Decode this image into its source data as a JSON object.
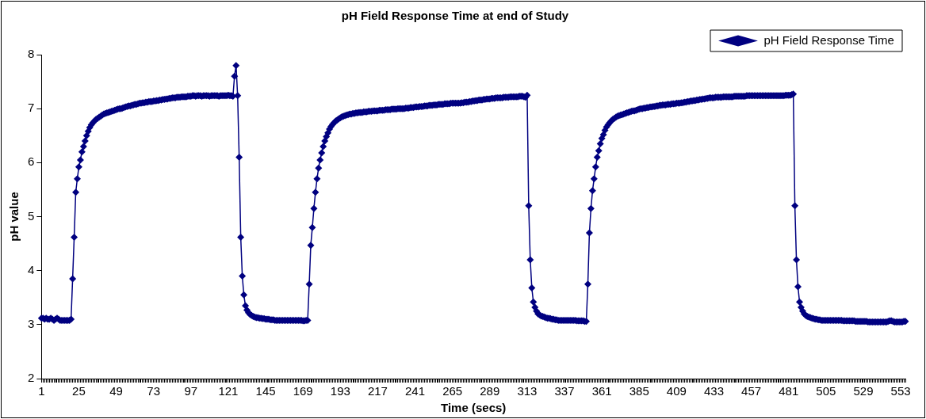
{
  "chart_data": {
    "type": "line",
    "title": "pH Field Response Time at end of Study",
    "xlabel": "Time (secs)",
    "ylabel": "pH value",
    "categories": [
      "1",
      null,
      null,
      null,
      null,
      null,
      null,
      null,
      null,
      null,
      null,
      null,
      null,
      null,
      null,
      null,
      null,
      null,
      null,
      null,
      null,
      null,
      null,
      null,
      "25",
      null,
      null,
      null,
      null,
      null,
      null,
      null,
      null,
      null,
      null,
      null,
      null,
      null,
      null,
      null,
      null,
      null,
      null,
      null,
      null,
      null,
      null,
      null,
      "49",
      null,
      null,
      null,
      null,
      null,
      null,
      null,
      null,
      null,
      null,
      null,
      null,
      null,
      null,
      null,
      null,
      null,
      null,
      null,
      null,
      null,
      null,
      null,
      "73",
      null,
      null,
      null,
      null,
      null,
      null,
      null,
      null,
      null,
      null,
      null,
      null,
      null,
      null,
      null,
      null,
      null,
      null,
      null,
      null,
      null,
      null,
      null,
      "97",
      null,
      null,
      null,
      null,
      null,
      null,
      null,
      null,
      null,
      null,
      null,
      null,
      null,
      null,
      null,
      null,
      null,
      null,
      null,
      null,
      null,
      null,
      null,
      "121",
      null,
      null,
      null,
      null,
      null,
      null,
      null,
      null,
      null,
      null,
      null,
      null,
      null,
      null,
      null,
      null,
      null,
      null,
      null,
      null,
      null,
      null,
      null,
      "145",
      null,
      null,
      null,
      null,
      null,
      null,
      null,
      null,
      null,
      null,
      null,
      null,
      null,
      null,
      null,
      null,
      null,
      null,
      null,
      null,
      null,
      null,
      null,
      "169",
      null,
      null,
      null,
      null,
      null,
      null,
      null,
      null,
      null,
      null,
      null,
      null,
      null,
      null,
      null,
      null,
      null,
      null,
      null,
      null,
      null,
      null,
      null,
      "193",
      null,
      null,
      null,
      null,
      null,
      null,
      null,
      null,
      null,
      null,
      null,
      null,
      null,
      null,
      null,
      null,
      null,
      null,
      null,
      null,
      null,
      null,
      null,
      "217",
      null,
      null,
      null,
      null,
      null,
      null,
      null,
      null,
      null,
      null,
      null,
      null,
      null,
      null,
      null,
      null,
      null,
      null,
      null,
      null,
      null,
      null,
      null,
      "241",
      null,
      null,
      null,
      null,
      null,
      null,
      null,
      null,
      null,
      null,
      null,
      null,
      null,
      null,
      null,
      null,
      null,
      null,
      null,
      null,
      null,
      null,
      null,
      "265",
      null,
      null,
      null,
      null,
      null,
      null,
      null,
      null,
      null,
      null,
      null,
      null,
      null,
      null,
      null,
      null,
      null,
      null,
      null,
      null,
      null,
      null,
      null,
      "289",
      null,
      null,
      null,
      null,
      null,
      null,
      null,
      null,
      null,
      null,
      null,
      null,
      null,
      null,
      null,
      null,
      null,
      null,
      null,
      null,
      null,
      null,
      null,
      "313",
      null,
      null,
      null,
      null,
      null,
      null,
      null,
      null,
      null,
      null,
      null,
      null,
      null,
      null,
      null,
      null,
      null,
      null,
      null,
      null,
      null,
      null,
      null,
      "337",
      null,
      null,
      null,
      null,
      null,
      null,
      null,
      null,
      null,
      null,
      null,
      null,
      null,
      null,
      null,
      null,
      null,
      null,
      null,
      null,
      null,
      null,
      null,
      "361",
      null,
      null,
      null,
      null,
      null,
      null,
      null,
      null,
      null,
      null,
      null,
      null,
      null,
      null,
      null,
      null,
      null,
      null,
      null,
      null,
      null,
      null,
      null,
      "385",
      null,
      null,
      null,
      null,
      null,
      null,
      null,
      null,
      null,
      null,
      null,
      null,
      null,
      null,
      null,
      null,
      null,
      null,
      null,
      null,
      null,
      null,
      null,
      "409",
      null,
      null,
      null,
      null,
      null,
      null,
      null,
      null,
      null,
      null,
      null,
      null,
      null,
      null,
      null,
      null,
      null,
      null,
      null,
      null,
      null,
      null,
      null,
      "433",
      null,
      null,
      null,
      null,
      null,
      null,
      null,
      null,
      null,
      null,
      null,
      null,
      null,
      null,
      null,
      null,
      null,
      null,
      null,
      null,
      null,
      null,
      null,
      "457",
      null,
      null,
      null,
      null,
      null,
      null,
      null,
      null,
      null,
      null,
      null,
      null,
      null,
      null,
      null,
      null,
      null,
      null,
      null,
      null,
      null,
      null,
      null,
      "481",
      null,
      null,
      null,
      null,
      null,
      null,
      null,
      null,
      null,
      null,
      null,
      null,
      null,
      null,
      null,
      null,
      null,
      null,
      null,
      null,
      null,
      null,
      null,
      "505",
      null,
      null,
      null,
      null,
      null,
      null,
      null,
      null,
      null,
      null,
      null,
      null,
      null,
      null,
      null,
      null,
      null,
      null,
      null,
      null,
      null,
      null,
      null,
      "529",
      null,
      null,
      null,
      null,
      null,
      null,
      null,
      null,
      null,
      null,
      null,
      null,
      null,
      null,
      null,
      null,
      null,
      null,
      null,
      null,
      null,
      null,
      null,
      "553",
      null,
      null,
      null
    ],
    "series": [
      {
        "name": "pH Field Response Time",
        "color": "#000080",
        "values": [
          3.12,
          3.12,
          3.1,
          3.12,
          3.1,
          3.1,
          3.12,
          3.1,
          3.08,
          3.1,
          3.12,
          3.1,
          3.08,
          3.08,
          3.08,
          3.08,
          3.08,
          3.08,
          3.08,
          3.1,
          3.85,
          4.62,
          5.45,
          5.7,
          5.92,
          6.05,
          6.2,
          6.3,
          6.4,
          6.5,
          6.58,
          6.65,
          6.7,
          6.74,
          6.77,
          6.8,
          6.82,
          6.84,
          6.86,
          6.88,
          6.9,
          6.91,
          6.92,
          6.93,
          6.94,
          6.95,
          6.96,
          6.97,
          6.98,
          6.99,
          7.0,
          7.0,
          7.01,
          7.02,
          7.03,
          7.04,
          7.05,
          7.05,
          7.06,
          7.07,
          7.08,
          7.08,
          7.09,
          7.1,
          7.1,
          7.11,
          7.11,
          7.12,
          7.12,
          7.13,
          7.13,
          7.13,
          7.14,
          7.14,
          7.15,
          7.15,
          7.16,
          7.16,
          7.17,
          7.17,
          7.18,
          7.18,
          7.19,
          7.19,
          7.2,
          7.2,
          7.2,
          7.21,
          7.21,
          7.21,
          7.22,
          7.22,
          7.22,
          7.22,
          7.23,
          7.23,
          7.23,
          7.24,
          7.24,
          7.23,
          7.24,
          7.24,
          7.24,
          7.23,
          7.24,
          7.24,
          7.24,
          7.24,
          7.23,
          7.24,
          7.24,
          7.24,
          7.24,
          7.24,
          7.23,
          7.24,
          7.24,
          7.24,
          7.24,
          7.24,
          7.25,
          7.24,
          7.24,
          7.23,
          7.6,
          7.8,
          7.24,
          6.1,
          4.62,
          3.9,
          3.55,
          3.35,
          3.27,
          3.22,
          3.19,
          3.17,
          3.15,
          3.14,
          3.13,
          3.13,
          3.12,
          3.12,
          3.11,
          3.11,
          3.1,
          3.1,
          3.1,
          3.09,
          3.09,
          3.09,
          3.08,
          3.08,
          3.08,
          3.08,
          3.08,
          3.08,
          3.08,
          3.08,
          3.08,
          3.08,
          3.08,
          3.08,
          3.08,
          3.08,
          3.08,
          3.08,
          3.08,
          3.08,
          3.07,
          3.07,
          3.08,
          3.08,
          3.75,
          4.47,
          4.8,
          5.15,
          5.45,
          5.7,
          5.9,
          6.05,
          6.18,
          6.3,
          6.4,
          6.48,
          6.55,
          6.62,
          6.67,
          6.71,
          6.74,
          6.77,
          6.79,
          6.81,
          6.83,
          6.85,
          6.86,
          6.87,
          6.88,
          6.89,
          6.9,
          6.9,
          6.91,
          6.91,
          6.92,
          6.92,
          6.93,
          6.93,
          6.93,
          6.94,
          6.94,
          6.94,
          6.95,
          6.95,
          6.95,
          6.96,
          6.96,
          6.96,
          6.96,
          6.97,
          6.97,
          6.97,
          6.97,
          6.98,
          6.98,
          6.98,
          6.98,
          6.99,
          6.99,
          6.99,
          6.99,
          7.0,
          7.0,
          7.0,
          7.0,
          7.0,
          7.01,
          7.01,
          7.01,
          7.02,
          7.02,
          7.02,
          7.03,
          7.03,
          7.03,
          7.04,
          7.04,
          7.04,
          7.05,
          7.05,
          7.05,
          7.06,
          7.06,
          7.06,
          7.07,
          7.07,
          7.07,
          7.08,
          7.08,
          7.08,
          7.08,
          7.09,
          7.09,
          7.09,
          7.09,
          7.1,
          7.1,
          7.1,
          7.1,
          7.1,
          7.1,
          7.1,
          7.11,
          7.11,
          7.12,
          7.12,
          7.12,
          7.13,
          7.13,
          7.14,
          7.14,
          7.15,
          7.15,
          7.16,
          7.16,
          7.16,
          7.17,
          7.17,
          7.18,
          7.18,
          7.18,
          7.19,
          7.19,
          7.19,
          7.2,
          7.2,
          7.2,
          7.2,
          7.2,
          7.21,
          7.21,
          7.21,
          7.21,
          7.22,
          7.22,
          7.22,
          7.22,
          7.22,
          7.22,
          7.23,
          7.23,
          7.23,
          7.22,
          7.21,
          7.25,
          5.2,
          4.2,
          3.68,
          3.42,
          3.32,
          3.25,
          3.2,
          3.18,
          3.16,
          3.15,
          3.14,
          3.13,
          3.12,
          3.12,
          3.11,
          3.1,
          3.1,
          3.09,
          3.09,
          3.08,
          3.08,
          3.08,
          3.08,
          3.08,
          3.08,
          3.08,
          3.08,
          3.08,
          3.08,
          3.08,
          3.08,
          3.07,
          3.07,
          3.07,
          3.07,
          3.07,
          3.06,
          3.06,
          3.75,
          4.7,
          5.15,
          5.48,
          5.7,
          5.92,
          6.1,
          6.22,
          6.35,
          6.45,
          6.52,
          6.6,
          6.66,
          6.7,
          6.74,
          6.77,
          6.8,
          6.82,
          6.84,
          6.86,
          6.87,
          6.88,
          6.89,
          6.9,
          6.91,
          6.92,
          6.93,
          6.94,
          6.95,
          6.96,
          6.96,
          6.97,
          6.98,
          6.99,
          7.0,
          7.0,
          7.01,
          7.01,
          7.02,
          7.02,
          7.03,
          7.03,
          7.04,
          7.04,
          7.05,
          7.05,
          7.06,
          7.06,
          7.07,
          7.07,
          7.07,
          7.08,
          7.08,
          7.08,
          7.09,
          7.09,
          7.09,
          7.1,
          7.1,
          7.1,
          7.11,
          7.11,
          7.12,
          7.12,
          7.13,
          7.13,
          7.14,
          7.14,
          7.15,
          7.15,
          7.16,
          7.16,
          7.17,
          7.17,
          7.18,
          7.18,
          7.19,
          7.19,
          7.2,
          7.2,
          7.2,
          7.2,
          7.21,
          7.21,
          7.21,
          7.21,
          7.21,
          7.22,
          7.22,
          7.22,
          7.22,
          7.22,
          7.22,
          7.22,
          7.23,
          7.23,
          7.23,
          7.23,
          7.23,
          7.23,
          7.23,
          7.23,
          7.24,
          7.24,
          7.24,
          7.24,
          7.24,
          7.24,
          7.24,
          7.24,
          7.24,
          7.24,
          7.24,
          7.24,
          7.24,
          7.24,
          7.24,
          7.24,
          7.24,
          7.24,
          7.24,
          7.24,
          7.24,
          7.24,
          7.24,
          7.24,
          7.24,
          7.25,
          7.25,
          7.25,
          7.25,
          7.26,
          7.27,
          5.2,
          4.2,
          3.7,
          3.42,
          3.32,
          3.25,
          3.2,
          3.17,
          3.15,
          3.14,
          3.13,
          3.12,
          3.11,
          3.1,
          3.1,
          3.09,
          3.09,
          3.08,
          3.08,
          3.08,
          3.08,
          3.08,
          3.08,
          3.08,
          3.08,
          3.08,
          3.08,
          3.08,
          3.08,
          3.08,
          3.08,
          3.07,
          3.07,
          3.07,
          3.07,
          3.07,
          3.07,
          3.07,
          3.07,
          3.06,
          3.06,
          3.06,
          3.06,
          3.06,
          3.06,
          3.06,
          3.06,
          3.05,
          3.05,
          3.05,
          3.05,
          3.05,
          3.05,
          3.05,
          3.05,
          3.05,
          3.05,
          3.05,
          3.05,
          3.05,
          3.06,
          3.07,
          3.07,
          3.06,
          3.05,
          3.05,
          3.05,
          3.05,
          3.05,
          3.05,
          3.06,
          3.06
        ]
      }
    ],
    "ylim": [
      2,
      8
    ],
    "yticks": [
      2,
      3,
      4,
      5,
      6,
      7,
      8
    ],
    "grid": false,
    "legend": "top right",
    "marker": "diamond",
    "line_style": "solid"
  }
}
